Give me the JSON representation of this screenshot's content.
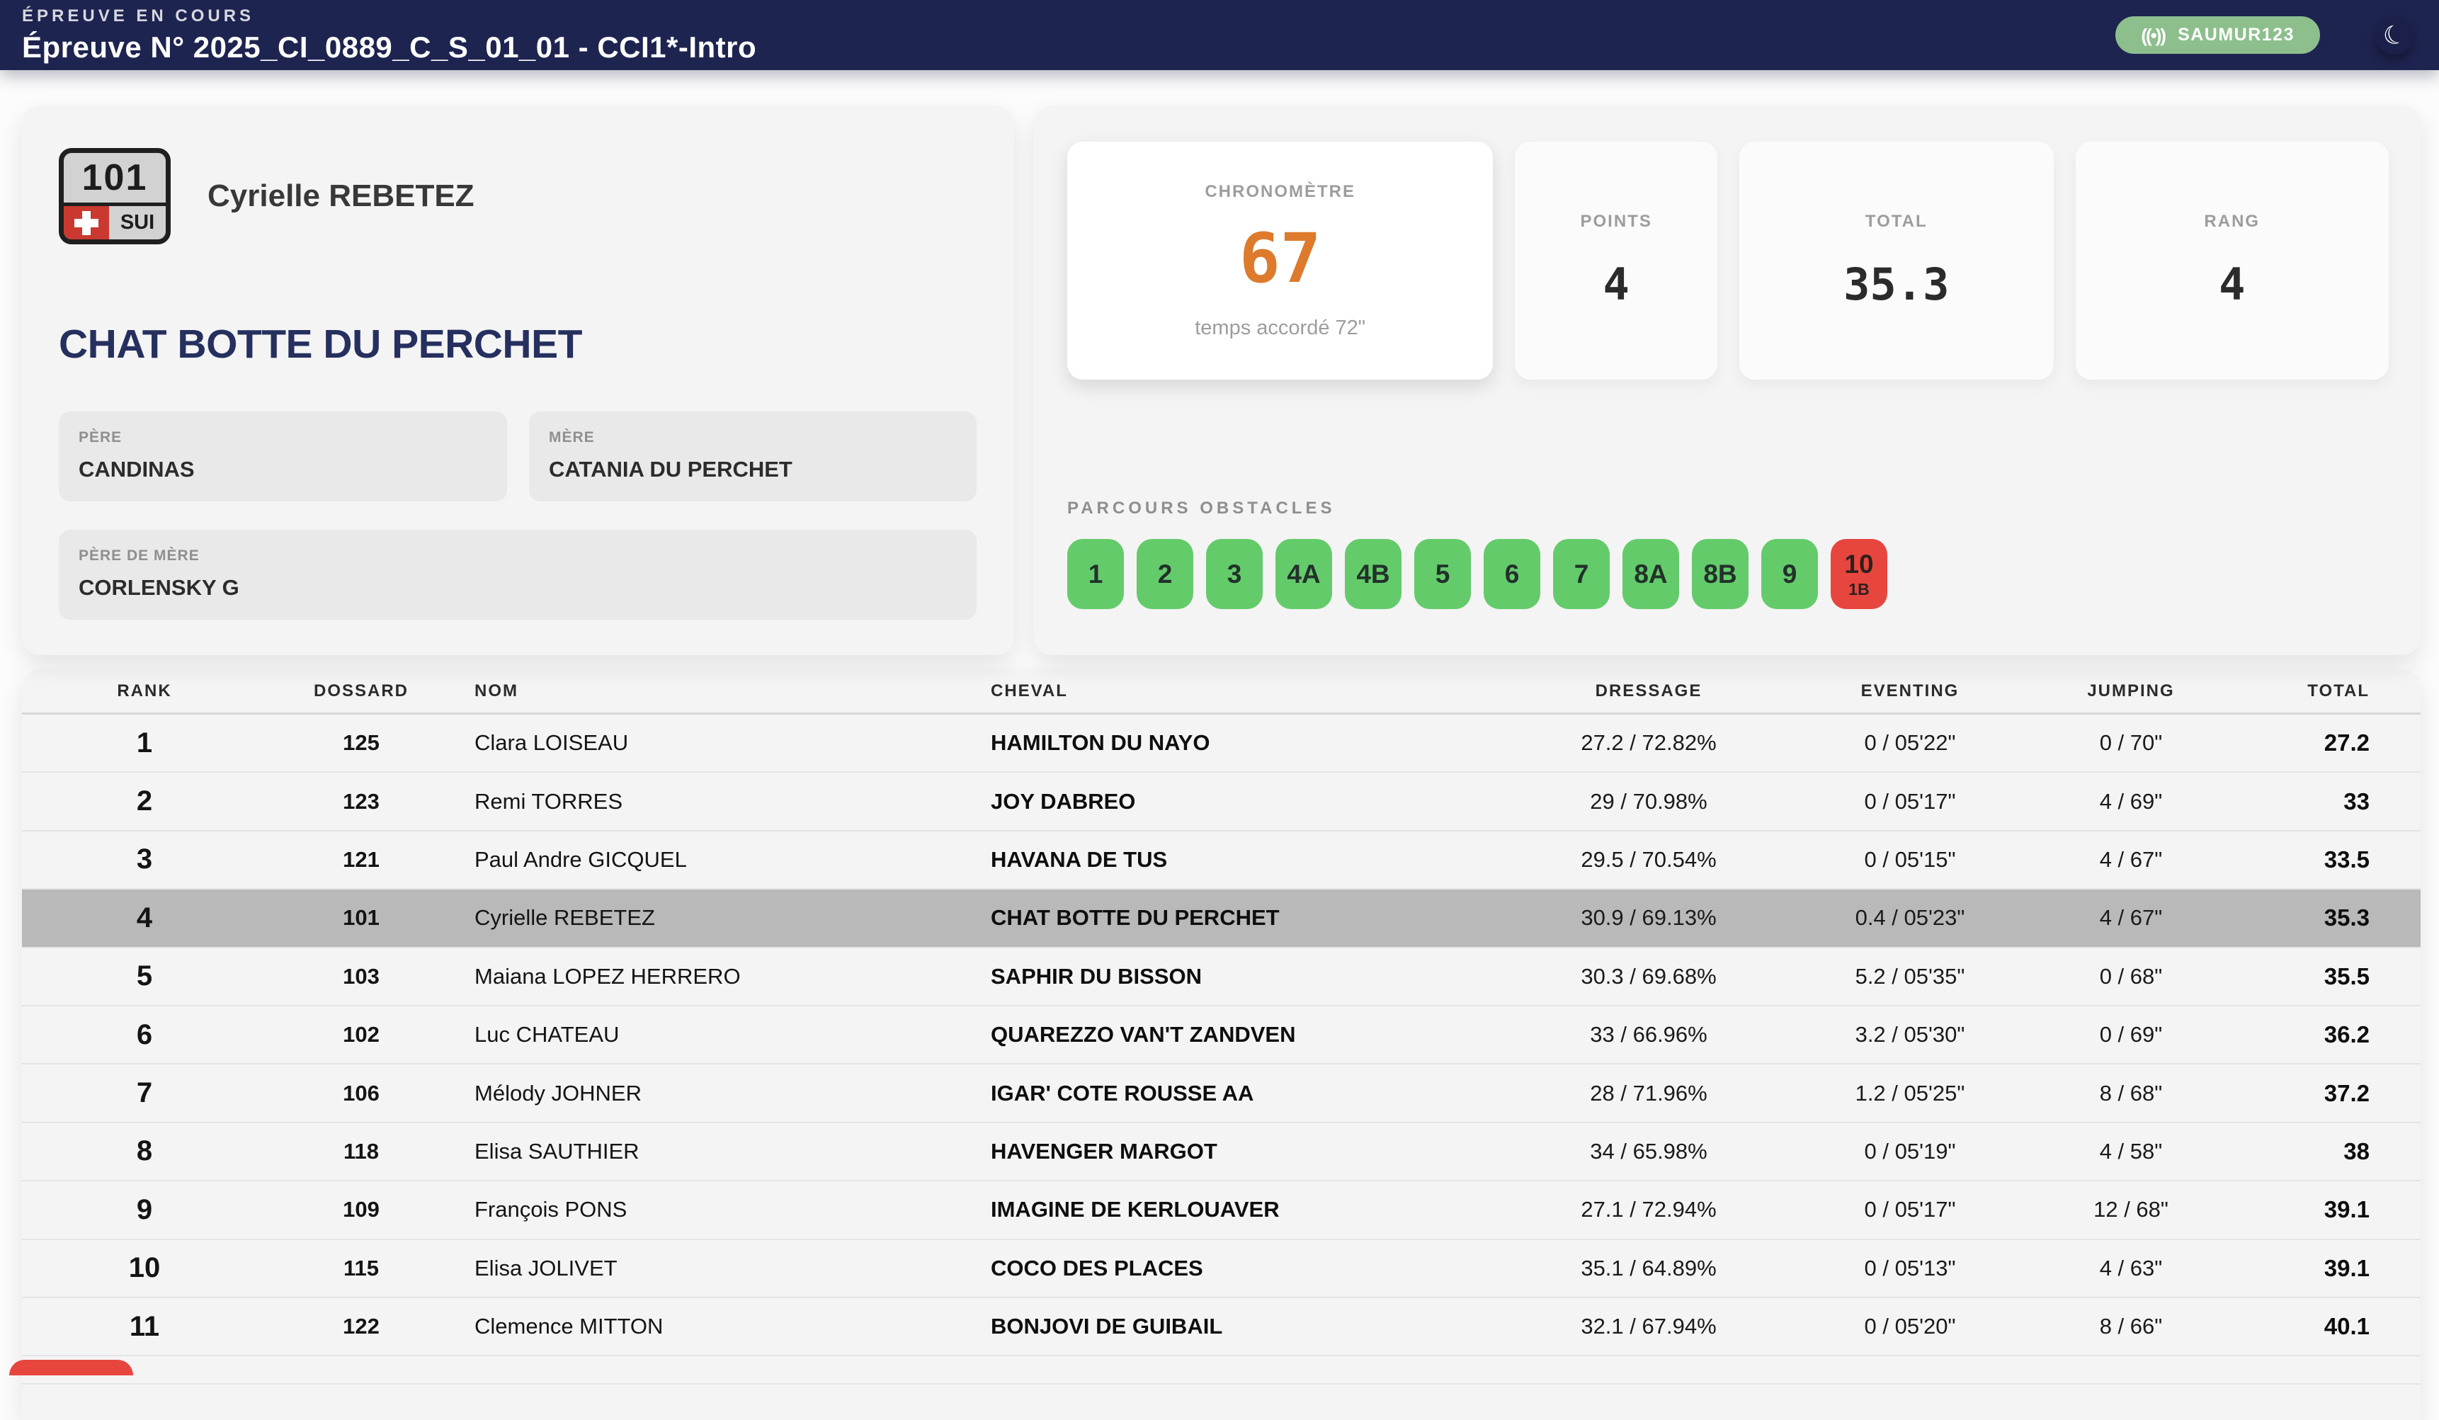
{
  "header": {
    "kicker": "ÉPREUVE EN COURS",
    "title": "Épreuve N° 2025_CI_0889_C_S_01_01 - CCI1*-Intro",
    "live_icon": "((•))",
    "live_badge": "SAUMUR123",
    "moon_icon": "☾"
  },
  "competitor": {
    "bib": "101",
    "nation": "SUI",
    "rider": "Cyrielle REBETEZ",
    "horse": "CHAT BOTTE DU PERCHET",
    "pedigree": {
      "sire_label": "PÈRE",
      "sire": "CANDINAS",
      "dam_label": "MÈRE",
      "dam": "CATANIA DU PERCHET",
      "damsire_label": "PÈRE DE MÈRE",
      "damsire": "CORLENSKY G"
    }
  },
  "stats": {
    "chrono": {
      "label": "CHRONOMÈTRE",
      "value": "67",
      "sub": "temps accordé 72\""
    },
    "points": {
      "label": "POINTS",
      "value": "4"
    },
    "total": {
      "label": "TOTAL",
      "value": "35.3"
    },
    "rank": {
      "label": "RANG",
      "value": "4"
    }
  },
  "obstacles": {
    "label": "PARCOURS OBSTACLES",
    "items": [
      {
        "label": "1"
      },
      {
        "label": "2"
      },
      {
        "label": "3"
      },
      {
        "label": "4A"
      },
      {
        "label": "4B"
      },
      {
        "label": "5"
      },
      {
        "label": "6"
      },
      {
        "label": "7"
      },
      {
        "label": "8A"
      },
      {
        "label": "8B"
      },
      {
        "label": "9"
      },
      {
        "label": "10",
        "sub": "1B",
        "status": "fault"
      }
    ]
  },
  "table": {
    "columns": [
      "RANK",
      "DOSSARD",
      "NOM",
      "CHEVAL",
      "DRESSAGE",
      "EVENTING",
      "JUMPING",
      "TOTAL"
    ],
    "rows": [
      {
        "rank": "1",
        "dossard": "125",
        "nom": "Clara LOISEAU",
        "cheval": "HAMILTON DU NAYO",
        "dressage": "27.2 / 72.82%",
        "eventing": "0 / 05'22\"",
        "jumping": "0 / 70\"",
        "total": "27.2"
      },
      {
        "rank": "2",
        "dossard": "123",
        "nom": "Remi TORRES",
        "cheval": "JOY DABREO",
        "dressage": "29 / 70.98%",
        "eventing": "0 / 05'17\"",
        "jumping": "4 / 69\"",
        "total": "33"
      },
      {
        "rank": "3",
        "dossard": "121",
        "nom": "Paul Andre GICQUEL",
        "cheval": "HAVANA DE TUS",
        "dressage": "29.5 / 70.54%",
        "eventing": "0 / 05'15\"",
        "jumping": "4 / 67\"",
        "total": "33.5"
      },
      {
        "rank": "4",
        "dossard": "101",
        "nom": "Cyrielle REBETEZ",
        "cheval": "CHAT BOTTE DU PERCHET",
        "dressage": "30.9 / 69.13%",
        "eventing": "0.4 / 05'23\"",
        "jumping": "4 / 67\"",
        "total": "35.3",
        "highlight": true
      },
      {
        "rank": "5",
        "dossard": "103",
        "nom": "Maiana LOPEZ HERRERO",
        "cheval": "SAPHIR DU BISSON",
        "dressage": "30.3 / 69.68%",
        "eventing": "5.2 / 05'35\"",
        "jumping": "0 / 68\"",
        "total": "35.5"
      },
      {
        "rank": "6",
        "dossard": "102",
        "nom": "Luc CHATEAU",
        "cheval": "QUAREZZO VAN'T ZANDVEN",
        "dressage": "33 / 66.96%",
        "eventing": "3.2 / 05'30\"",
        "jumping": "0 / 69\"",
        "total": "36.2"
      },
      {
        "rank": "7",
        "dossard": "106",
        "nom": "Mélody JOHNER",
        "cheval": "IGAR' COTE ROUSSE AA",
        "dressage": "28 / 71.96%",
        "eventing": "1.2 / 05'25\"",
        "jumping": "8 / 68\"",
        "total": "37.2"
      },
      {
        "rank": "8",
        "dossard": "118",
        "nom": "Elisa SAUTHIER",
        "cheval": "HAVENGER MARGOT",
        "dressage": "34 / 65.98%",
        "eventing": "0 / 05'19\"",
        "jumping": "4 / 58\"",
        "total": "38"
      },
      {
        "rank": "9",
        "dossard": "109",
        "nom": "François PONS",
        "cheval": "IMAGINE DE KERLOUAVER",
        "dressage": "27.1 / 72.94%",
        "eventing": "0 / 05'17\"",
        "jumping": "12 / 68\"",
        "total": "39.1"
      },
      {
        "rank": "10",
        "dossard": "115",
        "nom": "Elisa JOLIVET",
        "cheval": "COCO DES PLACES",
        "dressage": "35.1 / 64.89%",
        "eventing": "0 / 05'13\"",
        "jumping": "4 / 63\"",
        "total": "39.1"
      },
      {
        "rank": "11",
        "dossard": "122",
        "nom": "Clemence MITTON",
        "cheval": "BONJOVI DE GUIBAIL",
        "dressage": "32.1 / 67.94%",
        "eventing": "0 / 05'20\"",
        "jumping": "8 / 66\"",
        "total": "40.1"
      }
    ]
  },
  "colors": {
    "topbar_navy": "#1e2450",
    "badge_green": "#8dbf8d",
    "obstacle_green": "#64cb6b",
    "fault_red": "#e7463e",
    "chrono_orange": "#de7a2c",
    "highlight_gray": "#b9b9b9",
    "horse_navy": "#26305f"
  }
}
